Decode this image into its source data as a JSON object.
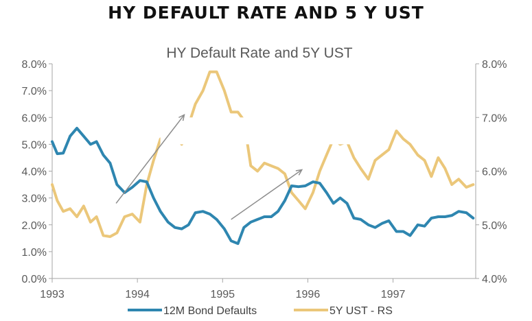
{
  "banner_title": "HY DEFAULT RATE AND 5 Y UST",
  "chart_data": {
    "type": "line",
    "title": "HY Default Rate and 5Y UST",
    "xlabel": "",
    "ylabel": "",
    "x_ticks": [
      "1993",
      "1994",
      "1995",
      "1996",
      "1997"
    ],
    "y_left_ticks": [
      "0.0%",
      "1.0%",
      "2.0%",
      "3.0%",
      "4.0%",
      "5.0%",
      "6.0%",
      "7.0%",
      "8.0%"
    ],
    "y_right_ticks": [
      "4.0%",
      "5.0%",
      "6.0%",
      "7.0%",
      "8.0%"
    ],
    "ylim_left": [
      0,
      8
    ],
    "ylim_right": [
      4,
      8
    ],
    "x_range": [
      1993.0,
      1997.97
    ],
    "grid": false,
    "legend_position": "bottom",
    "colors": {
      "defaults": "#2E86B0",
      "ust": "#EBC77A",
      "annotation": "#8C8C8C",
      "axis": "#A6A6A6"
    },
    "series": [
      {
        "name": "12M Bond Defaults",
        "axis": "left",
        "x": [
          1993.0,
          1993.06,
          1993.13,
          1993.21,
          1993.29,
          1993.37,
          1993.45,
          1993.52,
          1993.6,
          1993.68,
          1993.76,
          1993.85,
          1993.94,
          1994.03,
          1994.11,
          1994.19,
          1994.27,
          1994.36,
          1994.44,
          1994.52,
          1994.6,
          1994.68,
          1994.77,
          1994.85,
          1994.93,
          1995.02,
          1995.1,
          1995.18,
          1995.25,
          1995.33,
          1995.41,
          1995.49,
          1995.57,
          1995.65,
          1995.73,
          1995.81,
          1995.89,
          1995.97,
          1996.06,
          1996.14,
          1996.22,
          1996.3,
          1996.38,
          1996.46,
          1996.54,
          1996.62,
          1996.71,
          1996.79,
          1996.87,
          1996.95,
          1997.04,
          1997.12,
          1997.2,
          1997.29,
          1997.37,
          1997.45,
          1997.53,
          1997.61,
          1997.69,
          1997.77,
          1997.86,
          1997.94
        ],
        "values": [
          5.1,
          4.65,
          4.67,
          5.3,
          5.6,
          5.3,
          5.0,
          5.1,
          4.6,
          4.3,
          3.5,
          3.2,
          3.4,
          3.65,
          3.6,
          3.0,
          2.5,
          2.1,
          1.9,
          1.85,
          2.0,
          2.45,
          2.5,
          2.4,
          2.2,
          1.85,
          1.4,
          1.3,
          1.9,
          2.1,
          2.2,
          2.3,
          2.3,
          2.5,
          2.9,
          3.45,
          3.42,
          3.45,
          3.6,
          3.55,
          3.2,
          2.8,
          3.0,
          2.8,
          2.25,
          2.2,
          2.0,
          1.9,
          2.05,
          2.15,
          1.75,
          1.75,
          1.6,
          2.0,
          1.95,
          2.25,
          2.3,
          2.3,
          2.35,
          2.5,
          2.45,
          2.25
        ]
      },
      {
        "name": "5Y UST - RS",
        "axis": "right",
        "x": [
          1993.0,
          1993.06,
          1993.13,
          1993.21,
          1993.29,
          1993.37,
          1993.45,
          1993.52,
          1993.6,
          1993.68,
          1993.76,
          1993.85,
          1993.94,
          1994.03,
          1994.11,
          1994.19,
          1994.27,
          1994.36,
          1994.44,
          1994.52,
          1994.6,
          1994.68,
          1994.77,
          1994.85,
          1994.93,
          1995.02,
          1995.1,
          1995.18,
          1995.25,
          1995.33,
          1995.41,
          1995.49,
          1995.57,
          1995.65,
          1995.73,
          1995.81,
          1995.89,
          1995.97,
          1996.06,
          1996.14,
          1996.22,
          1996.3,
          1996.38,
          1996.46,
          1996.54,
          1996.62,
          1996.71,
          1996.79,
          1996.87,
          1996.95,
          1997.04,
          1997.12,
          1997.2,
          1997.29,
          1997.37,
          1997.45,
          1997.53,
          1997.61,
          1997.69,
          1997.77,
          1997.86,
          1997.94
        ],
        "values": [
          5.75,
          5.45,
          5.25,
          5.3,
          5.15,
          5.35,
          5.05,
          5.15,
          4.8,
          4.78,
          4.85,
          5.15,
          5.2,
          5.05,
          5.75,
          6.2,
          6.6,
          6.7,
          6.7,
          6.5,
          6.85,
          7.25,
          7.5,
          7.85,
          7.85,
          7.5,
          7.1,
          7.1,
          6.95,
          6.1,
          6.0,
          6.15,
          6.1,
          6.05,
          5.95,
          5.6,
          5.45,
          5.3,
          5.6,
          6.0,
          6.3,
          6.6,
          6.5,
          6.55,
          6.25,
          6.05,
          5.85,
          6.2,
          6.3,
          6.4,
          6.75,
          6.6,
          6.5,
          6.3,
          6.2,
          5.9,
          6.25,
          6.05,
          5.75,
          5.85,
          5.7,
          5.75
        ]
      }
    ],
    "annotations": [
      {
        "type": "arrow",
        "from": [
          1993.75,
          2.8
        ],
        "to": [
          1994.55,
          6.1
        ]
      },
      {
        "type": "arrow",
        "from": [
          1995.1,
          2.2
        ],
        "to": [
          1995.93,
          4.05
        ]
      }
    ]
  }
}
